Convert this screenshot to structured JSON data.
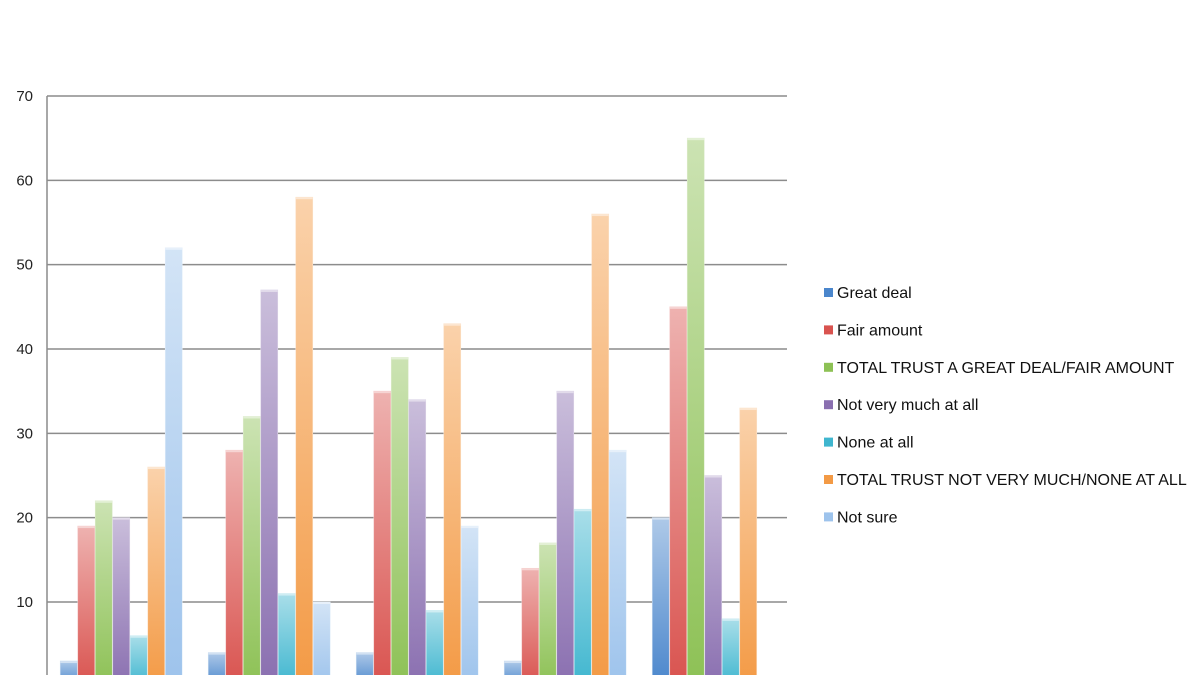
{
  "chart_data": {
    "type": "bar",
    "title": "",
    "xlabel": "",
    "ylabel": "",
    "ylim": [
      0,
      70
    ],
    "yticks": [
      10,
      20,
      30,
      40,
      50,
      60,
      70
    ],
    "grid": true,
    "legend_position": "right",
    "categories": [
      "",
      "",
      "",
      "",
      ""
    ],
    "series": [
      {
        "name": "Great deal",
        "color": "#4a86cc",
        "values": [
          3,
          4,
          4,
          3,
          20
        ]
      },
      {
        "name": "Fair amount",
        "color": "#d9534f",
        "values": [
          19,
          28,
          35,
          14,
          45
        ]
      },
      {
        "name": "TOTAL TRUST A GREAT DEAL/FAIR AMOUNT",
        "color": "#8dc155",
        "values": [
          22,
          32,
          39,
          17,
          65
        ]
      },
      {
        "name": "Not very much at all",
        "color": "#8a6fb0",
        "values": [
          20,
          47,
          34,
          35,
          25
        ]
      },
      {
        "name": "None at all",
        "color": "#3fb6cf",
        "values": [
          6,
          11,
          9,
          21,
          8
        ]
      },
      {
        "name": "TOTAL TRUST NOT VERY MUCH/NONE AT ALL",
        "color": "#f39a45",
        "values": [
          26,
          58,
          43,
          56,
          33
        ]
      },
      {
        "name": "Not sure",
        "color": "#9dc3ec",
        "values": [
          52,
          10,
          19,
          28,
          1
        ]
      }
    ]
  }
}
